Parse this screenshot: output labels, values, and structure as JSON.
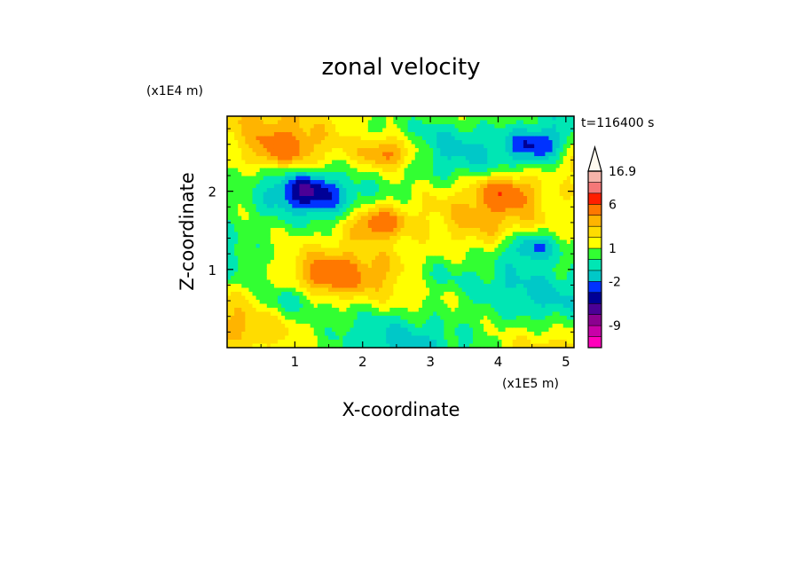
{
  "chart_data": {
    "type": "heatmap",
    "title": "zonal velocity",
    "xlabel": "X-coordinate",
    "ylabel": "Z-coordinate",
    "x_scale_label": "(x1E5 m)",
    "y_scale_label": "(x1E4 m)",
    "time_label": "t=116400 s",
    "xlim": [
      0,
      5.12
    ],
    "ylim": [
      0,
      2.96
    ],
    "x_ticks": [
      1,
      2,
      3,
      4,
      5
    ],
    "y_ticks": [
      1,
      2
    ],
    "colorbar": {
      "labels": [
        "16.9",
        "6",
        "1",
        "-2",
        "-9"
      ],
      "label_values": [
        16.9,
        6,
        1,
        -2,
        -9
      ],
      "bands": [
        {
          "lo": -15,
          "hi": -12,
          "color": "#ff00bb"
        },
        {
          "lo": -12,
          "hi": -9,
          "color": "#c800a8"
        },
        {
          "lo": -9,
          "hi": -6,
          "color": "#8c0090"
        },
        {
          "lo": -6,
          "hi": -4,
          "color": "#4b0096"
        },
        {
          "lo": -4,
          "hi": -3,
          "color": "#000096"
        },
        {
          "lo": -3,
          "hi": -2,
          "color": "#0032ff"
        },
        {
          "lo": -2,
          "hi": -1,
          "color": "#00c8c8"
        },
        {
          "lo": -1,
          "hi": 0,
          "color": "#00e6b4"
        },
        {
          "lo": 0,
          "hi": 1,
          "color": "#32ff32"
        },
        {
          "lo": 1,
          "hi": 2,
          "color": "#ffff00"
        },
        {
          "lo": 2,
          "hi": 3,
          "color": "#ffdc00"
        },
        {
          "lo": 3,
          "hi": 4,
          "color": "#ffb400"
        },
        {
          "lo": 4,
          "hi": 6,
          "color": "#ff7800"
        },
        {
          "lo": 6,
          "hi": 9,
          "color": "#ff1e00"
        },
        {
          "lo": 9,
          "hi": 12,
          "color": "#f57878"
        },
        {
          "lo": 12,
          "hi": 16.9,
          "color": "#f5b4aa"
        },
        {
          "lo": 16.9,
          "hi": 20,
          "color": "#fffaf0"
        }
      ]
    },
    "field_description_features": [
      {
        "x": 2.2,
        "z": 1.6,
        "amp": 5
      },
      {
        "x": 4.6,
        "z": 2.6,
        "amp": -4
      },
      {
        "x": 1.2,
        "z": 2.0,
        "amp": -3
      },
      {
        "x": 4.5,
        "z": 1.3,
        "amp": -4
      },
      {
        "x": 3.0,
        "z": 0.9,
        "amp": -1.5
      },
      {
        "x": 0.9,
        "z": 0.6,
        "amp": -2
      },
      {
        "x": 1.5,
        "z": 0.9,
        "amp": 3
      },
      {
        "x": 2.4,
        "z": 2.5,
        "amp": 4
      },
      {
        "x": 4.1,
        "z": 2.0,
        "amp": 4
      },
      {
        "x": 0.8,
        "z": 2.5,
        "amp": 3
      }
    ]
  }
}
